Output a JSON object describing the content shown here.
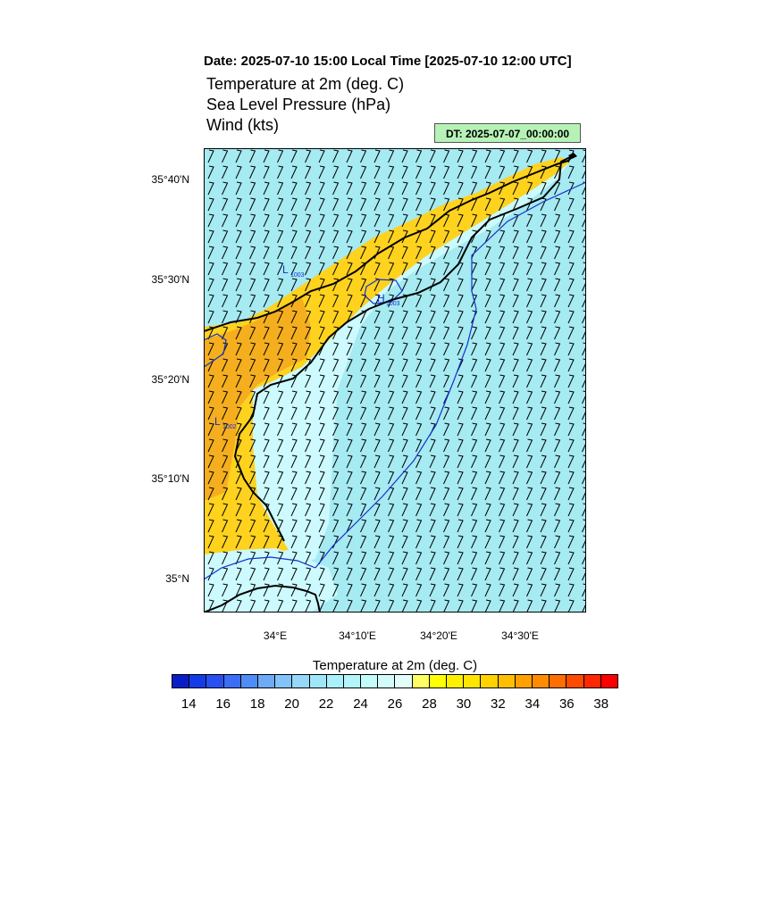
{
  "header": {
    "date_line": "Date: 2025-07-10  15:00 Local Time [2025-07-10  12:00 UTC]",
    "titles": [
      "Temperature at 2m   (deg. C)",
      "Sea Level Pressure   (hPa)",
      "Wind   (kts)"
    ],
    "dt_box": "DT: 2025-07-07_00:00:00"
  },
  "map": {
    "lat_labels": [
      "35°40'N",
      "35°30'N",
      "35°20'N",
      "35°10'N",
      "35°N"
    ],
    "lon_labels": [
      "34°E",
      "34°10'E",
      "34°20'E",
      "34°30'E"
    ],
    "pressure_labels": [
      {
        "text": "1003",
        "kind": "L"
      },
      {
        "text": "1003",
        "kind": "H"
      },
      {
        "text": "1002",
        "kind": "L"
      }
    ],
    "colors": {
      "sea_cool": "#a6eaf2",
      "sea_light": "#ccfaff",
      "warm_yellow": "#ffd21e",
      "warm_orange": "#f5ae1e",
      "coast": "#000000",
      "isobar": "#1432c8"
    }
  },
  "colorbar": {
    "title": "Temperature at 2m  (deg. C)",
    "labels": [
      "14",
      "16",
      "18",
      "20",
      "22",
      "24",
      "26",
      "28",
      "30",
      "32",
      "34",
      "36",
      "38"
    ],
    "colors": [
      "#0a1ec8",
      "#143ce6",
      "#2850f0",
      "#3c6ef5",
      "#508cf5",
      "#6eaaf5",
      "#82c3fa",
      "#96d7fa",
      "#a0e6fa",
      "#aaf0fa",
      "#b4f5fa",
      "#c3fafa",
      "#d2fcfa",
      "#e1fefa",
      "#ffff64",
      "#ffff00",
      "#fff000",
      "#ffe600",
      "#ffd200",
      "#ffbe00",
      "#ffa000",
      "#ff8c00",
      "#ff6e00",
      "#ff4b00",
      "#ff2800",
      "#ff0000"
    ]
  }
}
